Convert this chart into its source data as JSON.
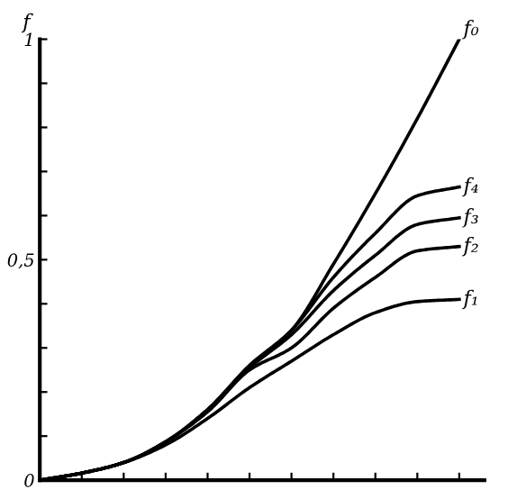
{
  "chart_data": {
    "type": "line",
    "ylabel": "f",
    "categories": [
      null,
      null,
      null,
      null,
      null,
      null,
      null,
      null,
      null,
      null,
      null
    ],
    "series": [
      {
        "name": "f₀",
        "color": "#000000",
        "values": [
          0,
          0.016,
          0.04,
          0.087,
          0.16,
          0.26,
          0.34,
          0.49,
          0.65,
          0.82,
          1.0
        ]
      },
      {
        "name": "f₄",
        "color": "#000000",
        "values": [
          0,
          0.016,
          0.04,
          0.087,
          0.16,
          0.26,
          0.34,
          0.46,
          0.56,
          0.645,
          0.665
        ]
      },
      {
        "name": "f₃",
        "color": "#000000",
        "values": [
          0,
          0.016,
          0.04,
          0.087,
          0.16,
          0.255,
          0.33,
          0.43,
          0.51,
          0.58,
          0.595
        ]
      },
      {
        "name": "f₂",
        "color": "#000000",
        "values": [
          0,
          0.016,
          0.04,
          0.087,
          0.155,
          0.25,
          0.3,
          0.39,
          0.46,
          0.52,
          0.53
        ]
      },
      {
        "name": "f₁",
        "color": "#000000",
        "values": [
          0,
          0.016,
          0.04,
          0.08,
          0.14,
          0.21,
          0.27,
          0.33,
          0.38,
          0.405,
          0.41
        ]
      }
    ],
    "ylim": [
      0,
      1
    ],
    "yticks": [
      0,
      {
        "value": 0.1,
        "label": null
      },
      {
        "value": 0.2,
        "label": null
      },
      {
        "value": 0.3,
        "label": null
      },
      {
        "value": 0.4,
        "label": null
      },
      {
        "value": 0.5,
        "label": "0,5"
      },
      {
        "value": 0.6,
        "label": null
      },
      {
        "value": 0.7,
        "label": null
      },
      {
        "value": 0.8,
        "label": null
      },
      {
        "value": 0.9,
        "label": null
      },
      1
    ],
    "grid": false,
    "legend": false,
    "marker": "none",
    "line_style": "solid"
  }
}
